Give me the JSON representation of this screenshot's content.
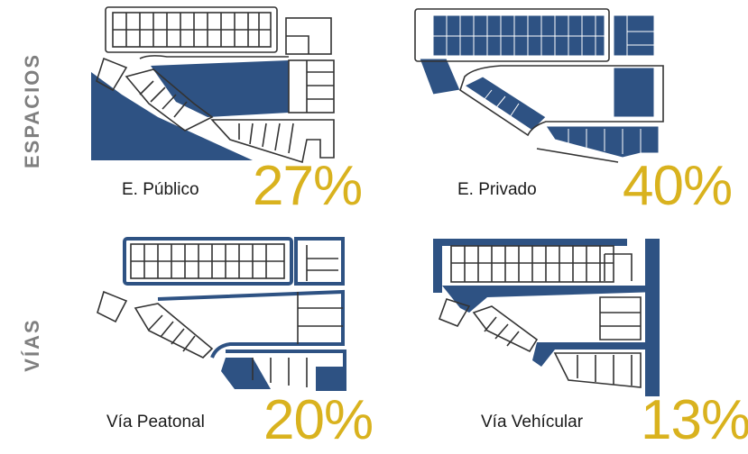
{
  "row_labels": {
    "espacios": "ESPACIOS",
    "vias": "VÍAS"
  },
  "panels": [
    {
      "id": "publico",
      "caption": "E. Público",
      "percent": "27%"
    },
    {
      "id": "privado",
      "caption": "E. Privado",
      "percent": "40%"
    },
    {
      "id": "peatonal",
      "caption": "Vía Peatonal",
      "percent": "20%"
    },
    {
      "id": "vehicular",
      "caption": "Vía Vehícular",
      "percent": "13%"
    }
  ],
  "colors": {
    "highlight": "#2e5283",
    "accent": "#d9b21e",
    "label": "#7f7f7f",
    "line": "#333333"
  }
}
